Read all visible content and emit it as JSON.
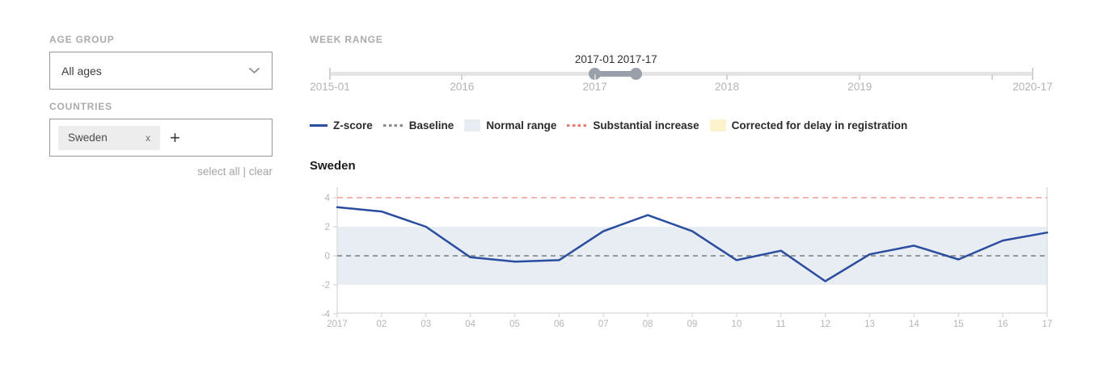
{
  "colors": {
    "accent_blue": "#2a4da0",
    "normal_range": "#e8edf3",
    "substantial": "#f3a9a4",
    "baseline": "#8b8b8b",
    "corrected": "#faf3cd",
    "slider_selected": "#99a0a9"
  },
  "filters": {
    "age_group": {
      "label": "AGE GROUP",
      "value": "All ages"
    },
    "countries": {
      "label": "COUNTRIES",
      "tags": [
        {
          "name": "Sweden",
          "remove": "x"
        }
      ],
      "add": "+",
      "select_all": "select all",
      "divider": "|",
      "clear": "clear"
    }
  },
  "week_range": {
    "label": "WEEK RANGE",
    "handles": [
      {
        "label": "2017-01",
        "pct": 37.7
      },
      {
        "label": "2017-17",
        "pct": 43.5
      }
    ],
    "ticks": [
      {
        "label": "2015-01",
        "pct": 0,
        "major": true
      },
      {
        "label": "2016",
        "pct": 18.8,
        "major": false
      },
      {
        "label": "2017",
        "pct": 37.7,
        "major": false
      },
      {
        "label": "2018",
        "pct": 56.5,
        "major": false
      },
      {
        "label": "2019",
        "pct": 75.4,
        "major": false
      },
      {
        "label": "",
        "pct": 94.2,
        "major": false
      },
      {
        "label": "2020-17",
        "pct": 100,
        "major": true
      }
    ]
  },
  "legend": {
    "items": [
      {
        "label": "Z-score",
        "type": "line",
        "color": "#2a4da0"
      },
      {
        "label": "Baseline",
        "type": "dotted",
        "color": "#8b8b8b"
      },
      {
        "label": "Normal range",
        "type": "box",
        "color": "#e8edf3"
      },
      {
        "label": "Substantial increase",
        "type": "dotted",
        "color": "#ea7a72"
      },
      {
        "label": "Corrected for delay in registration",
        "type": "box",
        "color": "#faf3cd"
      }
    ]
  },
  "chart_data": {
    "type": "line",
    "title": "Sweden",
    "x": [
      "2017",
      "02",
      "03",
      "04",
      "05",
      "06",
      "07",
      "08",
      "09",
      "10",
      "11",
      "12",
      "13",
      "14",
      "15",
      "16",
      "17"
    ],
    "series": [
      {
        "name": "Z-score",
        "values": [
          3.35,
          3.05,
          2.0,
          -0.1,
          -0.4,
          -0.3,
          1.7,
          2.8,
          1.7,
          -0.3,
          0.35,
          -1.75,
          0.1,
          0.7,
          -0.25,
          1.05,
          1.6
        ]
      }
    ],
    "baseline": 0,
    "substantial_increase": 4,
    "normal_range": [
      -2,
      2
    ],
    "ylim": [
      -4.45,
      4.45
    ],
    "yticks": [
      4,
      2,
      0,
      -2,
      -4
    ],
    "grid": false,
    "legend_position": "top"
  }
}
